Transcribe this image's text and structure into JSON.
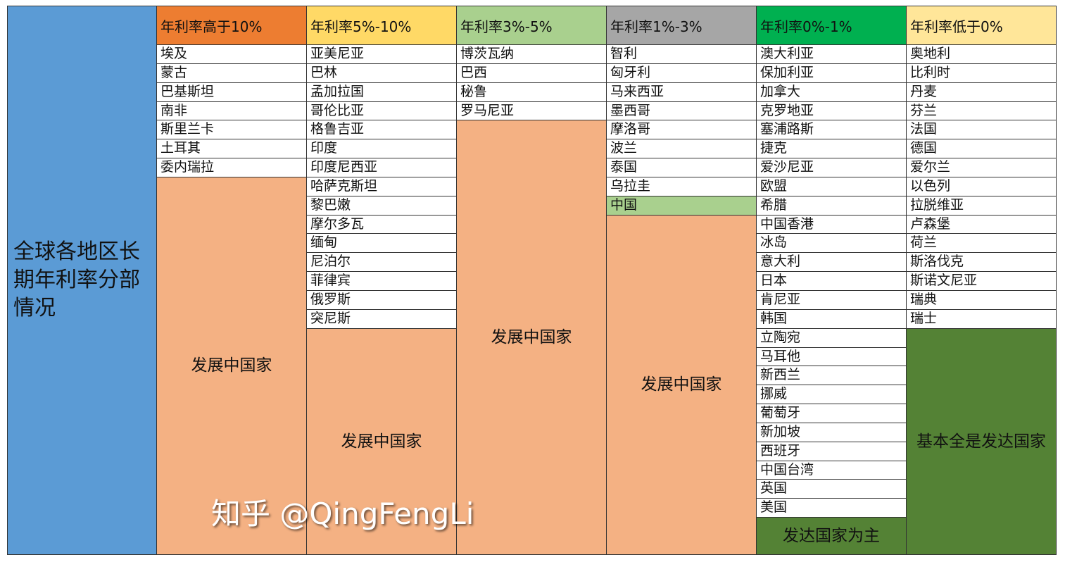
{
  "title": "全球各地区长期年利率分部情况",
  "columns": [
    {
      "header": "年利率高于10%",
      "header_color": "#ED7D31",
      "items": [
        "埃及",
        "蒙古",
        "巴基斯坦",
        "南非",
        "斯里兰卡",
        "土耳其",
        "委内瑞拉"
      ],
      "block_label": "发展中国家",
      "block_color": "#F4B183"
    },
    {
      "header": "年利率5%-10%",
      "header_color": "#FFD966",
      "items": [
        "亚美尼亚",
        "巴林",
        "孟加拉国",
        "哥伦比亚",
        "格鲁吉亚",
        "印度",
        "印度尼西亚",
        "哈萨克斯坦",
        "黎巴嫩",
        "摩尔多瓦",
        "缅甸",
        "尼泊尔",
        "菲律宾",
        "俄罗斯",
        "突尼斯"
      ],
      "block_label": "发展中国家",
      "block_color": "#F4B183"
    },
    {
      "header": "年利率3%-5%",
      "header_color": "#A9D08E",
      "items": [
        "博茨瓦纳",
        "巴西",
        "秘鲁",
        "罗马尼亚"
      ],
      "block_label": "发展中国家",
      "block_color": "#F4B183"
    },
    {
      "header": "年利率1%-3%",
      "header_color": "#A6A6A6",
      "items": [
        "智利",
        "匈牙利",
        "马来西亚",
        "墨西哥",
        "摩洛哥",
        "波兰",
        "泰国",
        "乌拉圭",
        "中国"
      ],
      "highlight_item": "中国",
      "highlight_color": "#A9D08E",
      "block_label": "发展中国家",
      "block_color": "#F4B183"
    },
    {
      "header": "年利率0%-1%",
      "header_color": "#00B050",
      "items": [
        "澳大利亚",
        "保加利亚",
        "加拿大",
        "克罗地亚",
        "塞浦路斯",
        "捷克",
        "爱沙尼亚",
        "欧盟",
        "希腊",
        "中国香港",
        "冰岛",
        "意大利",
        "日本",
        "肯尼亚",
        "韩国",
        "立陶宛",
        "马耳他",
        "新西兰",
        "挪威",
        "葡萄牙",
        "新加坡",
        "西班牙",
        "中国台湾",
        "英国",
        "美国"
      ],
      "block_label": "发达国家为主",
      "block_color": "#548235"
    },
    {
      "header": "年利率低于0%",
      "header_color": "#FFE699",
      "items": [
        "奥地利",
        "比利时",
        "丹麦",
        "芬兰",
        "法国",
        "德国",
        "爱尔兰",
        "以色列",
        "拉脱维亚",
        "卢森堡",
        "荷兰",
        "斯洛伐克",
        "斯诺文尼亚",
        "瑞典",
        "瑞士"
      ],
      "block_label": "基本全是发达国家",
      "block_color": "#548235"
    }
  ],
  "watermark": "知乎 @QingFengLi",
  "colors": {
    "title_bg": "#5B9BD5"
  }
}
